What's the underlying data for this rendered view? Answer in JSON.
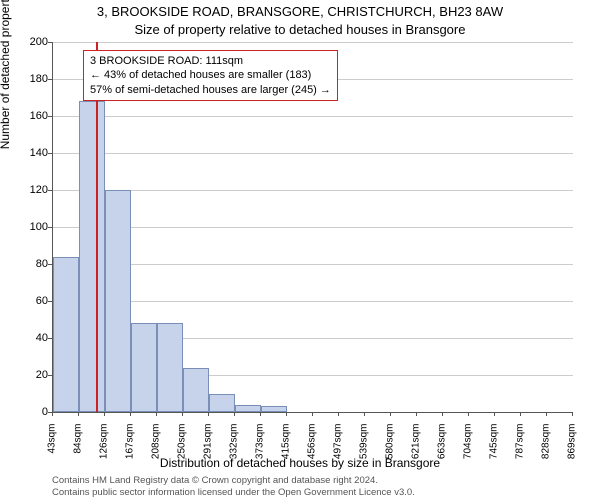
{
  "title_line1": "3, BROOKSIDE ROAD, BRANSGORE, CHRISTCHURCH, BH23 8AW",
  "title_line2": "Size of property relative to detached houses in Bransgore",
  "y_axis_label": "Number of detached properties",
  "x_axis_label": "Distribution of detached houses by size in Bransgore",
  "chart": {
    "type": "histogram",
    "background_color": "#ffffff",
    "grid_color": "#cccccc",
    "axis_color": "#555555",
    "bar_fill": "#c6d3eb",
    "bar_border": "#7a8fb8",
    "marker_color": "#cc2222",
    "ylim": [
      0,
      200
    ],
    "yticks": [
      0,
      20,
      40,
      60,
      80,
      100,
      120,
      140,
      160,
      180,
      200
    ],
    "xtick_labels": [
      "43sqm",
      "84sqm",
      "126sqm",
      "167sqm",
      "208sqm",
      "250sqm",
      "291sqm",
      "332sqm",
      "373sqm",
      "415sqm",
      "456sqm",
      "497sqm",
      "539sqm",
      "580sqm",
      "621sqm",
      "663sqm",
      "704sqm",
      "745sqm",
      "787sqm",
      "828sqm",
      "869sqm"
    ],
    "bars": [
      {
        "x": 43,
        "h": 84
      },
      {
        "x": 84,
        "h": 168
      },
      {
        "x": 126,
        "h": 120
      },
      {
        "x": 167,
        "h": 48
      },
      {
        "x": 208,
        "h": 48
      },
      {
        "x": 250,
        "h": 24
      },
      {
        "x": 291,
        "h": 10
      },
      {
        "x": 332,
        "h": 4
      },
      {
        "x": 373,
        "h": 3
      },
      {
        "x": 415,
        "h": 0
      },
      {
        "x": 456,
        "h": 0
      },
      {
        "x": 497,
        "h": 0
      },
      {
        "x": 539,
        "h": 0
      },
      {
        "x": 580,
        "h": 0
      },
      {
        "x": 621,
        "h": 0
      },
      {
        "x": 663,
        "h": 0
      },
      {
        "x": 704,
        "h": 0
      },
      {
        "x": 745,
        "h": 0
      },
      {
        "x": 787,
        "h": 0
      },
      {
        "x": 828,
        "h": 0
      }
    ],
    "x_range": [
      43,
      869
    ],
    "bin_width": 41,
    "marker_x": 111,
    "callout": {
      "line1": "3 BROOKSIDE ROAD: 111sqm",
      "line2": "← 43% of detached houses are smaller (183)",
      "line3": "57% of semi-detached houses are larger (245) →"
    },
    "label_fontsize": 12,
    "tick_fontsize": 11
  },
  "footer_line1": "Contains HM Land Registry data © Crown copyright and database right 2024.",
  "footer_line2": "Contains public sector information licensed under the Open Government Licence v3.0."
}
